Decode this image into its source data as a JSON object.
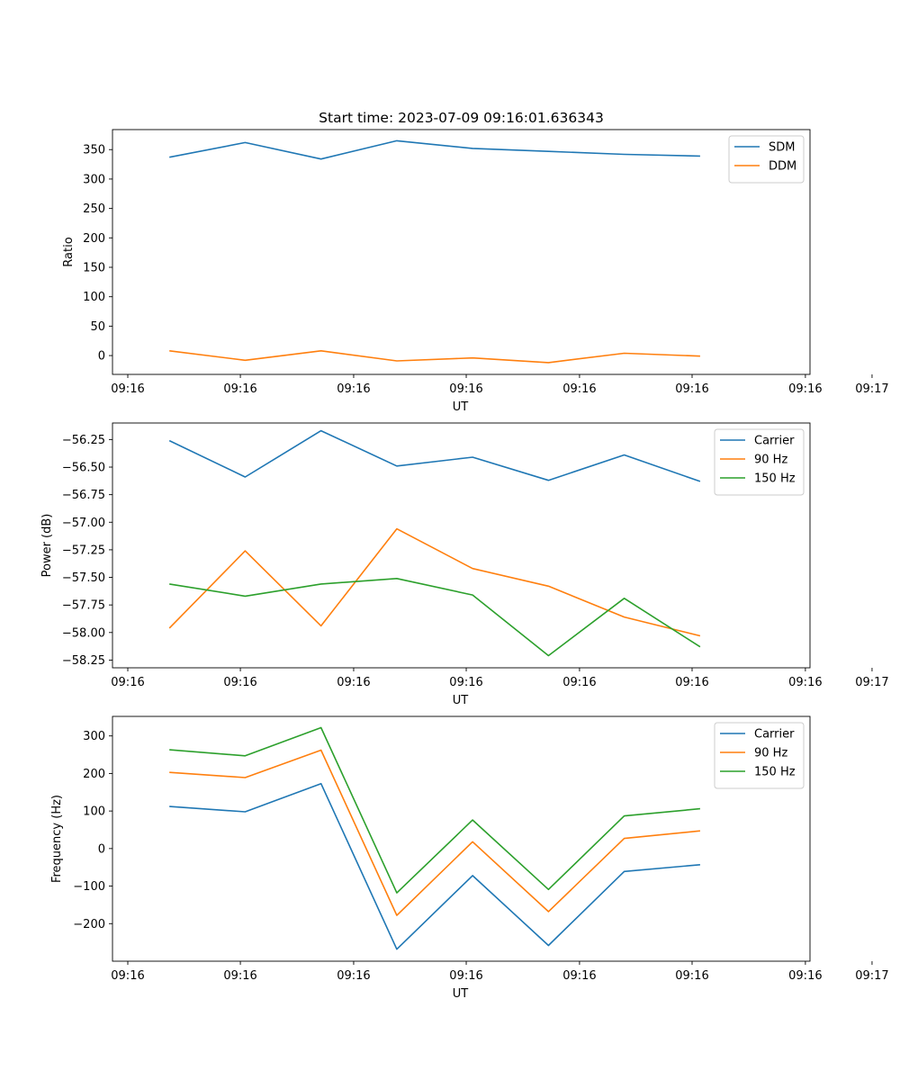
{
  "figure_title": "Start time: 2023-07-09 09:16:01.636343",
  "colors": {
    "blue": "#1f77b4",
    "orange": "#ff7f0e",
    "green": "#2ca02c"
  },
  "chart_data": [
    {
      "type": "line",
      "title": "Start time: 2023-07-09 09:16:01.636343",
      "xlabel": "UT",
      "ylabel": "Ratio",
      "xlim": [
        -0.75,
        8.45
      ],
      "ylim": [
        -32,
        384
      ],
      "x": [
        0,
        1,
        2,
        3,
        4,
        5,
        6,
        7
      ],
      "xticks": [
        -0.75,
        0.77,
        2.3,
        3.82,
        5.35,
        6.87,
        8.4
      ],
      "xtick_labels": [
        "09:16",
        "09:16",
        "09:16",
        "09:16",
        "09:16",
        "09:16",
        "09:16",
        "09:17"
      ],
      "xtick_positions": [
        -0.75,
        0.77,
        2.3,
        3.82,
        5.35,
        6.87,
        8.4,
        9.3
      ],
      "yticks": [
        0,
        50,
        100,
        150,
        200,
        250,
        300,
        350
      ],
      "ytick_labels": [
        "0",
        "50",
        "100",
        "150",
        "200",
        "250",
        "300",
        "350"
      ],
      "legend": "top-right",
      "series": [
        {
          "name": "SDM",
          "color": "#1f77b4",
          "values": [
            337,
            362,
            334,
            365,
            352,
            347,
            342,
            339
          ]
        },
        {
          "name": "DDM",
          "color": "#ff7f0e",
          "values": [
            8,
            -8,
            8,
            -9,
            -4,
            -12,
            4,
            -1
          ]
        }
      ]
    },
    {
      "type": "line",
      "title": "",
      "xlabel": "UT",
      "ylabel": "Power (dB)",
      "xlim": [
        -0.75,
        8.45
      ],
      "ylim": [
        -58.32,
        -56.1
      ],
      "x": [
        0,
        1,
        2,
        3,
        4,
        5,
        6,
        7
      ],
      "xtick_labels": [
        "09:16",
        "09:16",
        "09:16",
        "09:16",
        "09:16",
        "09:16",
        "09:16",
        "09:17"
      ],
      "xtick_positions": [
        -0.75,
        0.77,
        2.3,
        3.82,
        5.35,
        6.87,
        8.4,
        9.3
      ],
      "yticks": [
        -58.25,
        -58.0,
        -57.75,
        -57.5,
        -57.25,
        -57.0,
        -56.75,
        -56.5,
        -56.25
      ],
      "ytick_labels": [
        "−58.25",
        "−58.00",
        "−57.75",
        "−57.50",
        "−57.25",
        "−57.00",
        "−56.75",
        "−56.50",
        "−56.25"
      ],
      "legend": "top-right",
      "series": [
        {
          "name": "Carrier",
          "color": "#1f77b4",
          "values": [
            -56.26,
            -56.59,
            -56.17,
            -56.49,
            -56.41,
            -56.62,
            -56.39,
            -56.63
          ]
        },
        {
          "name": "90 Hz",
          "color": "#ff7f0e",
          "values": [
            -57.96,
            -57.26,
            -57.94,
            -57.06,
            -57.42,
            -57.58,
            -57.86,
            -58.03
          ]
        },
        {
          "name": "150 Hz",
          "color": "#2ca02c",
          "values": [
            -57.56,
            -57.67,
            -57.56,
            -57.51,
            -57.66,
            -58.21,
            -57.69,
            -58.13
          ]
        }
      ]
    },
    {
      "type": "line",
      "title": "",
      "xlabel": "UT",
      "ylabel": "Frequency (Hz)",
      "xlim": [
        -0.75,
        8.45
      ],
      "ylim": [
        -300,
        352
      ],
      "x": [
        0,
        1,
        2,
        3,
        4,
        5,
        6,
        7
      ],
      "xtick_labels": [
        "09:16",
        "09:16",
        "09:16",
        "09:16",
        "09:16",
        "09:16",
        "09:16",
        "09:17"
      ],
      "xtick_positions": [
        -0.75,
        0.77,
        2.3,
        3.82,
        5.35,
        6.87,
        8.4,
        9.3
      ],
      "yticks": [
        -200,
        -100,
        0,
        100,
        200,
        300
      ],
      "ytick_labels": [
        "−200",
        "−100",
        "0",
        "100",
        "200",
        "300"
      ],
      "legend": "top-right",
      "series": [
        {
          "name": "Carrier",
          "color": "#1f77b4",
          "values": [
            112,
            98,
            173,
            -268,
            -72,
            -258,
            -61,
            -43
          ]
        },
        {
          "name": "90 Hz",
          "color": "#ff7f0e",
          "values": [
            203,
            189,
            262,
            -178,
            18,
            -168,
            27,
            47
          ]
        },
        {
          "name": "150 Hz",
          "color": "#2ca02c",
          "values": [
            263,
            247,
            322,
            -118,
            76,
            -109,
            87,
            106
          ]
        }
      ]
    }
  ]
}
